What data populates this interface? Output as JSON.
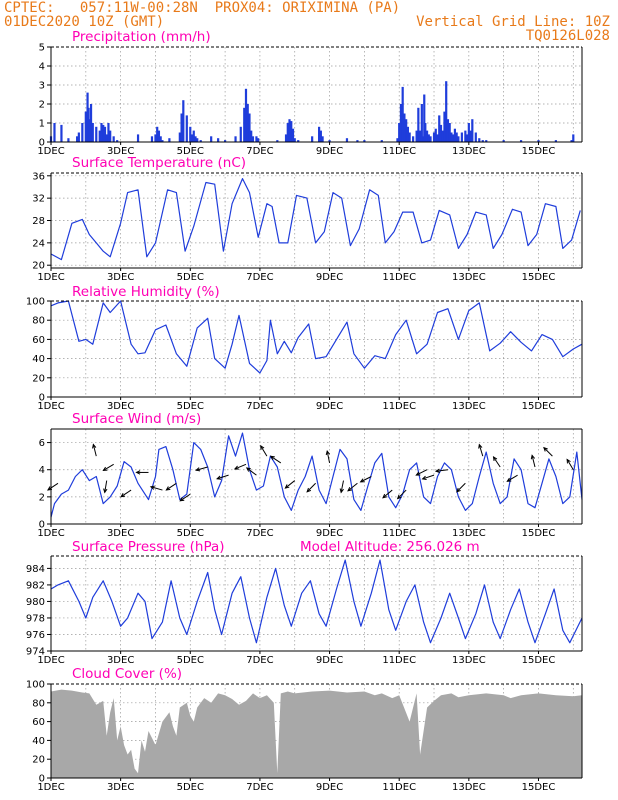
{
  "header": {
    "line1_left": "CPTEC:   057:11W-00:28N  PROX04: ORIXIMINA (PA)",
    "line2_left": "01DEC2020 10Z (GMT)",
    "line2_right": "Vertical Grid Line: 10Z",
    "line3_right": "TQ0126L028"
  },
  "colors": {
    "header": "#e87a1a",
    "title": "#ff00b4",
    "series": "#1f3ddb",
    "cloud": "#a8a8a8",
    "grid": "#9a9a9a"
  },
  "x_axis": {
    "start": "01DEC2020 10Z",
    "step_hours": 1,
    "tick_labels": [
      "1DEC",
      "3DEC",
      "5DEC",
      "7DEC",
      "9DEC",
      "11DEC",
      "13DEC",
      "15DEC"
    ],
    "tick_days": [
      0,
      2,
      4,
      6,
      8,
      10,
      12,
      14
    ],
    "xlim_days": [
      0,
      15.25
    ]
  },
  "chart_data": [
    {
      "type": "bar",
      "title": "Precipitation (mm/h)",
      "ylim": [
        0,
        5
      ],
      "yticks": [
        0,
        1,
        2,
        3,
        4,
        5
      ],
      "x_days": [
        0.0,
        0.1,
        0.3,
        0.5,
        0.75,
        0.8,
        0.9,
        1.0,
        1.05,
        1.08,
        1.12,
        1.15,
        1.2,
        1.3,
        1.4,
        1.45,
        1.5,
        1.55,
        1.6,
        1.65,
        1.7,
        1.8,
        1.9,
        2.5,
        2.9,
        3.0,
        3.05,
        3.1,
        3.15,
        3.2,
        3.4,
        3.7,
        3.75,
        3.8,
        3.9,
        4.0,
        4.05,
        4.1,
        4.15,
        4.2,
        4.3,
        4.6,
        4.8,
        5.0,
        5.3,
        5.45,
        5.55,
        5.6,
        5.65,
        5.7,
        5.75,
        5.8,
        5.9,
        5.95,
        6.5,
        6.75,
        6.8,
        6.85,
        6.9,
        6.95,
        7.0,
        7.1,
        7.5,
        7.7,
        7.75,
        7.8,
        8.0,
        8.5,
        8.8,
        9.0,
        9.5,
        9.95,
        10.0,
        10.05,
        10.1,
        10.15,
        10.2,
        10.25,
        10.3,
        10.4,
        10.5,
        10.55,
        10.6,
        10.65,
        10.7,
        10.72,
        10.75,
        10.8,
        10.85,
        10.9,
        11.0,
        11.05,
        11.1,
        11.15,
        11.2,
        11.25,
        11.3,
        11.35,
        11.4,
        11.45,
        11.5,
        11.55,
        11.6,
        11.65,
        11.7,
        11.8,
        11.9,
        11.95,
        12.0,
        12.05,
        12.1,
        12.2,
        12.3,
        12.4,
        12.5,
        13.0,
        13.5,
        14.0,
        14.5,
        14.95,
        15.0
      ],
      "values": [
        0.3,
        1.0,
        0.9,
        0.2,
        0.3,
        0.5,
        1.0,
        1.6,
        2.6,
        1.8,
        1.2,
        2.0,
        1.0,
        0.8,
        0.6,
        1.0,
        0.9,
        0.8,
        0.4,
        1.0,
        0.6,
        0.3,
        0.1,
        0.4,
        0.3,
        0.4,
        0.8,
        0.6,
        0.3,
        0.1,
        0.2,
        0.5,
        1.5,
        2.2,
        1.4,
        0.8,
        0.4,
        0.6,
        0.3,
        0.2,
        0.1,
        0.3,
        0.2,
        0.1,
        0.3,
        0.8,
        1.8,
        2.8,
        2.0,
        1.5,
        0.6,
        0.3,
        0.3,
        0.2,
        0.1,
        0.4,
        1.0,
        1.2,
        1.1,
        0.7,
        0.2,
        0.1,
        0.3,
        0.8,
        0.6,
        0.3,
        0.1,
        0.2,
        0.1,
        0.1,
        0.1,
        0.2,
        1.0,
        2.0,
        2.9,
        1.5,
        1.2,
        0.8,
        0.5,
        0.3,
        0.6,
        1.8,
        0.6,
        2.0,
        0.3,
        2.5,
        1.0,
        0.6,
        0.4,
        0.3,
        0.5,
        0.7,
        0.4,
        1.4,
        0.9,
        0.6,
        1.6,
        3.2,
        1.2,
        1.0,
        0.5,
        0.4,
        0.7,
        0.5,
        0.3,
        0.5,
        0.6,
        0.4,
        1.0,
        0.6,
        1.2,
        0.5,
        0.2,
        0.1,
        0.1,
        0.1,
        0.1,
        0.1,
        0.1,
        0.1,
        0.4
      ]
    },
    {
      "type": "line",
      "title": "Surface Temperature (nC)",
      "ylim": [
        19.5,
        36.5
      ],
      "yticks": [
        20,
        24,
        28,
        32,
        36
      ],
      "x_days": [
        0,
        0.3,
        0.6,
        0.9,
        1.1,
        1.3,
        1.5,
        1.7,
        2.0,
        2.2,
        2.5,
        2.75,
        3.0,
        3.35,
        3.6,
        3.85,
        4.1,
        4.45,
        4.7,
        4.95,
        5.2,
        5.5,
        5.7,
        5.95,
        6.2,
        6.35,
        6.55,
        6.8,
        7.05,
        7.35,
        7.6,
        7.85,
        8.1,
        8.35,
        8.6,
        8.85,
        9.15,
        9.4,
        9.6,
        9.85,
        10.1,
        10.4,
        10.65,
        10.9,
        11.15,
        11.45,
        11.7,
        11.95,
        12.2,
        12.5,
        12.7,
        12.95,
        13.25,
        13.5,
        13.7,
        13.95,
        14.2,
        14.5,
        14.7,
        14.95,
        15.2
      ],
      "values": [
        22.0,
        21.0,
        27.5,
        28.2,
        25.5,
        24.0,
        22.5,
        21.5,
        27.5,
        33.0,
        33.5,
        21.5,
        24.0,
        33.5,
        33.0,
        22.5,
        27.0,
        34.8,
        34.5,
        22.5,
        31.0,
        35.5,
        33.0,
        25.0,
        31.0,
        30.5,
        24.0,
        24.0,
        32.5,
        32.0,
        24.0,
        26.0,
        33.0,
        32.0,
        23.5,
        26.5,
        33.5,
        32.5,
        24.0,
        26.0,
        29.5,
        29.5,
        24.0,
        24.5,
        29.8,
        29.0,
        23.0,
        25.5,
        29.5,
        29.0,
        23.0,
        25.5,
        30.0,
        29.5,
        23.5,
        25.5,
        31.0,
        30.5,
        23.0,
        24.5,
        29.8
      ]
    },
    {
      "type": "line",
      "title": "Relative Humidity (%)",
      "ylim": [
        0,
        100
      ],
      "yticks": [
        0,
        20,
        40,
        60,
        80,
        100
      ],
      "x_days": [
        0,
        0.2,
        0.5,
        0.8,
        1.0,
        1.2,
        1.5,
        1.7,
        2.0,
        2.3,
        2.5,
        2.7,
        3.0,
        3.3,
        3.6,
        3.9,
        4.2,
        4.5,
        4.7,
        5.0,
        5.2,
        5.4,
        5.7,
        6.0,
        6.2,
        6.3,
        6.5,
        6.7,
        6.9,
        7.1,
        7.4,
        7.6,
        7.9,
        8.2,
        8.5,
        8.7,
        9.0,
        9.3,
        9.6,
        9.9,
        10.2,
        10.5,
        10.8,
        11.1,
        11.4,
        11.7,
        12.0,
        12.3,
        12.6,
        12.9,
        13.2,
        13.5,
        13.8,
        14.1,
        14.4,
        14.7,
        15.0,
        15.25
      ],
      "values": [
        95,
        98,
        100,
        58,
        60,
        55,
        98,
        88,
        100,
        55,
        45,
        46,
        70,
        75,
        45,
        32,
        72,
        82,
        40,
        30,
        55,
        85,
        35,
        25,
        38,
        80,
        45,
        58,
        46,
        62,
        76,
        40,
        42,
        60,
        78,
        45,
        30,
        43,
        40,
        65,
        80,
        45,
        55,
        88,
        92,
        60,
        90,
        98,
        48,
        56,
        68,
        57,
        48,
        65,
        60,
        42,
        50,
        55
      ]
    },
    {
      "type": "line",
      "title": "Surface Wind (m/s)",
      "ylim": [
        0,
        7
      ],
      "yticks": [
        0,
        2,
        4,
        6
      ],
      "x_days": [
        0,
        0.1,
        0.3,
        0.5,
        0.7,
        0.9,
        1.1,
        1.3,
        1.5,
        1.7,
        1.9,
        2.1,
        2.3,
        2.5,
        2.8,
        3.0,
        3.1,
        3.3,
        3.5,
        3.7,
        3.9,
        4.1,
        4.3,
        4.5,
        4.7,
        4.9,
        5.1,
        5.3,
        5.5,
        5.7,
        5.9,
        6.1,
        6.3,
        6.5,
        6.7,
        6.9,
        7.1,
        7.3,
        7.5,
        7.7,
        7.9,
        8.1,
        8.3,
        8.5,
        8.7,
        8.9,
        9.1,
        9.3,
        9.5,
        9.7,
        9.9,
        10.1,
        10.3,
        10.5,
        10.7,
        10.9,
        11.1,
        11.3,
        11.5,
        11.7,
        11.9,
        12.1,
        12.3,
        12.5,
        12.7,
        12.9,
        13.1,
        13.3,
        13.5,
        13.7,
        13.9,
        14.1,
        14.3,
        14.5,
        14.7,
        14.9,
        15.1,
        15.25
      ],
      "values": [
        0.5,
        1.5,
        2.2,
        2.5,
        3.5,
        4.0,
        3.2,
        3.5,
        1.5,
        2.0,
        2.8,
        4.6,
        4.2,
        3.0,
        1.8,
        3.5,
        5.5,
        5.7,
        4.0,
        1.8,
        2.2,
        6.0,
        5.5,
        4.2,
        2.0,
        3.2,
        6.5,
        5.0,
        6.7,
        4.0,
        2.5,
        2.8,
        5.0,
        4.2,
        2.0,
        1.0,
        2.5,
        3.5,
        5.0,
        2.5,
        1.5,
        3.5,
        5.5,
        4.8,
        1.8,
        1.0,
        2.8,
        4.5,
        5.2,
        2.0,
        1.2,
        2.2,
        4.0,
        4.5,
        2.0,
        1.5,
        3.5,
        4.5,
        4.0,
        2.0,
        1.0,
        1.5,
        3.5,
        5.3,
        3.0,
        1.5,
        2.0,
        4.8,
        4.0,
        1.5,
        1.2,
        3.0,
        4.8,
        3.5,
        1.5,
        2.0,
        5.3,
        1.8
      ],
      "vectors": [
        {
          "x_day": 0.2,
          "y": 3.0,
          "u": 1.2,
          "v": 0.8
        },
        {
          "x_day": 1.3,
          "y": 5.0,
          "u": 0.3,
          "v": -1.2
        },
        {
          "x_day": 1.6,
          "y": 3.2,
          "u": 0.2,
          "v": 1.2
        },
        {
          "x_day": 1.8,
          "y": 4.4,
          "u": 1.0,
          "v": 0.6
        },
        {
          "x_day": 2.3,
          "y": 2.5,
          "u": 1.5,
          "v": 1.0
        },
        {
          "x_day": 2.8,
          "y": 3.8,
          "u": 1.5,
          "v": 0.0
        },
        {
          "x_day": 3.2,
          "y": 2.5,
          "u": 1.4,
          "v": -0.4
        },
        {
          "x_day": 3.6,
          "y": 3.0,
          "u": 1.5,
          "v": 1.0
        },
        {
          "x_day": 4.0,
          "y": 2.2,
          "u": 1.8,
          "v": 1.2
        },
        {
          "x_day": 4.5,
          "y": 4.2,
          "u": 1.8,
          "v": 0.5
        },
        {
          "x_day": 5.1,
          "y": 3.6,
          "u": 1.6,
          "v": 0.5
        },
        {
          "x_day": 5.6,
          "y": 4.4,
          "u": 1.2,
          "v": 0.5
        },
        {
          "x_day": 5.9,
          "y": 3.6,
          "u": 0.4,
          "v": -0.3
        },
        {
          "x_day": 6.2,
          "y": 5.0,
          "u": 0.6,
          "v": -1.0
        },
        {
          "x_day": 6.6,
          "y": 4.5,
          "u": 0.6,
          "v": -0.4
        },
        {
          "x_day": 7.0,
          "y": 3.2,
          "u": 1.0,
          "v": 0.8
        },
        {
          "x_day": 7.6,
          "y": 3.0,
          "u": 1.0,
          "v": 1.0
        },
        {
          "x_day": 8.0,
          "y": 4.5,
          "u": 0.2,
          "v": -1.0
        },
        {
          "x_day": 8.4,
          "y": 3.2,
          "u": 0.2,
          "v": 1.0
        },
        {
          "x_day": 8.8,
          "y": 3.0,
          "u": 1.0,
          "v": 0.8
        },
        {
          "x_day": 9.2,
          "y": 3.5,
          "u": 1.0,
          "v": 0.5
        },
        {
          "x_day": 9.8,
          "y": 2.5,
          "u": 1.2,
          "v": 1.0
        },
        {
          "x_day": 10.2,
          "y": 2.5,
          "u": 1.0,
          "v": 1.0
        },
        {
          "x_day": 10.8,
          "y": 4.0,
          "u": 0.8,
          "v": 0.4
        },
        {
          "x_day": 11.0,
          "y": 3.6,
          "u": 1.2,
          "v": 0.4
        },
        {
          "x_day": 11.4,
          "y": 4.0,
          "u": 0.8,
          "v": 0.1
        },
        {
          "x_day": 11.9,
          "y": 3.0,
          "u": 1.0,
          "v": 1.0
        },
        {
          "x_day": 12.4,
          "y": 5.0,
          "u": 0.3,
          "v": -1.0
        },
        {
          "x_day": 12.9,
          "y": 4.2,
          "u": 0.4,
          "v": -0.6
        },
        {
          "x_day": 13.4,
          "y": 3.6,
          "u": 1.0,
          "v": 0.6
        },
        {
          "x_day": 13.9,
          "y": 4.2,
          "u": 0.2,
          "v": -0.8
        },
        {
          "x_day": 14.4,
          "y": 5.0,
          "u": 0.8,
          "v": -0.8
        },
        {
          "x_day": 15.0,
          "y": 4.0,
          "u": 0.6,
          "v": -1.0
        }
      ]
    },
    {
      "type": "line",
      "title": "Surface Pressure (hPa)",
      "annotation": "Model Altitude: 256.026 m",
      "ylim": [
        974,
        985.5
      ],
      "yticks": [
        974,
        976,
        978,
        980,
        982,
        984
      ],
      "x_days": [
        0,
        0.2,
        0.5,
        0.8,
        1.0,
        1.2,
        1.5,
        1.75,
        2.0,
        2.2,
        2.5,
        2.7,
        2.9,
        3.2,
        3.45,
        3.7,
        3.9,
        4.2,
        4.5,
        4.7,
        4.9,
        5.2,
        5.45,
        5.7,
        5.9,
        6.2,
        6.45,
        6.7,
        6.9,
        7.2,
        7.45,
        7.7,
        7.9,
        8.2,
        8.45,
        8.7,
        8.9,
        9.2,
        9.45,
        9.7,
        9.9,
        10.2,
        10.45,
        10.7,
        10.9,
        11.2,
        11.45,
        11.7,
        11.9,
        12.2,
        12.45,
        12.7,
        12.9,
        13.2,
        13.45,
        13.7,
        13.9,
        14.2,
        14.45,
        14.7,
        14.9,
        15.25
      ],
      "values": [
        981.5,
        982.0,
        982.5,
        980.0,
        978.0,
        980.5,
        982.5,
        980.0,
        977.0,
        978.0,
        981.0,
        980.0,
        975.5,
        977.5,
        982.5,
        978.0,
        976.0,
        980.0,
        983.5,
        979.0,
        976.0,
        981.0,
        983.0,
        978.0,
        975.0,
        980.5,
        984.0,
        979.5,
        977.0,
        981.0,
        982.5,
        978.5,
        977.0,
        981.5,
        985.0,
        980.0,
        977.0,
        981.0,
        985.0,
        979.0,
        976.5,
        980.0,
        982.0,
        977.5,
        975.0,
        978.0,
        981.0,
        978.0,
        975.5,
        978.5,
        982.0,
        977.5,
        975.5,
        979.0,
        981.5,
        977.5,
        975.0,
        978.5,
        981.5,
        976.5,
        975.0,
        978.0
      ]
    },
    {
      "type": "area",
      "title": "Cloud Cover (%)",
      "ylim": [
        0,
        100
      ],
      "yticks": [
        0,
        20,
        40,
        60,
        80,
        100
      ],
      "x_days": [
        0,
        0.3,
        0.6,
        0.9,
        1.1,
        1.3,
        1.5,
        1.6,
        1.7,
        1.8,
        1.9,
        2.0,
        2.1,
        2.2,
        2.3,
        2.4,
        2.5,
        2.6,
        2.7,
        2.8,
        3.0,
        3.2,
        3.4,
        3.5,
        3.6,
        3.7,
        3.9,
        4.0,
        4.1,
        4.2,
        4.4,
        4.6,
        4.8,
        5.0,
        5.2,
        5.4,
        5.6,
        5.8,
        6.0,
        6.2,
        6.4,
        6.5,
        6.6,
        6.8,
        7.0,
        7.5,
        8.0,
        8.5,
        9.0,
        9.3,
        9.5,
        9.8,
        10.0,
        10.3,
        10.5,
        10.6,
        10.8,
        11.0,
        11.2,
        11.5,
        11.7,
        12.0,
        12.5,
        13.0,
        13.2,
        13.5,
        14.0,
        14.5,
        15.0,
        15.25
      ],
      "values": [
        92,
        94,
        93,
        91,
        90,
        78,
        82,
        45,
        70,
        85,
        40,
        55,
        35,
        25,
        30,
        10,
        5,
        40,
        28,
        50,
        35,
        60,
        70,
        55,
        45,
        75,
        80,
        66,
        60,
        75,
        85,
        80,
        90,
        88,
        84,
        78,
        82,
        90,
        85,
        88,
        80,
        5,
        90,
        92,
        90,
        92,
        93,
        91,
        92,
        88,
        90,
        85,
        88,
        60,
        90,
        25,
        75,
        82,
        88,
        90,
        86,
        88,
        90,
        88,
        85,
        88,
        90,
        88,
        87,
        88
      ]
    }
  ]
}
